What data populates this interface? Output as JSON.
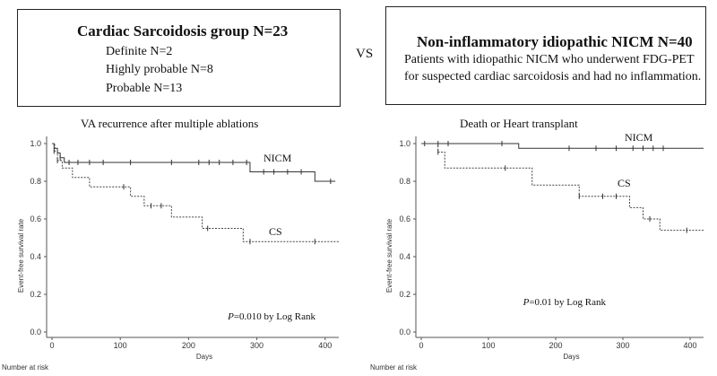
{
  "groups": {
    "cs": {
      "title": "Cardiac Sarcoidosis group N=23",
      "lines": [
        "Definite N=2",
        "Highly probable N=8",
        "Probable N=13"
      ]
    },
    "vs": "VS",
    "nicm": {
      "title": "Non-inflammatory idiopathic NICM N=40",
      "lines": [
        "Patients with idiopathic NICM who underwent FDG-PET",
        "for suspected cardiac sarcoidosis and had no inflammation."
      ]
    }
  },
  "chart_data": [
    {
      "type": "line",
      "title": "VA recurrence after multiple ablations",
      "xlabel": "Days",
      "ylabel": "Event-free survival rate",
      "xlim": [
        0,
        420
      ],
      "ylim": [
        0,
        1.0
      ],
      "xticks": [
        "0",
        "100",
        "200",
        "300",
        "400"
      ],
      "yticks": [
        "0.0",
        "0.2",
        "0.4",
        "0.6",
        "0.8",
        "1.0"
      ],
      "annotation_p": "P",
      "annotation_rest": "=0.010 by Log Rank",
      "risk_label": "Number at risk",
      "series": [
        {
          "name": "NICM",
          "style": "solid",
          "steps": [
            [
              0,
              1.0
            ],
            [
              3,
              0.975
            ],
            [
              8,
              0.95
            ],
            [
              12,
              0.925
            ],
            [
              18,
              0.9
            ],
            [
              290,
              0.9
            ],
            [
              290,
              0.85
            ],
            [
              385,
              0.85
            ],
            [
              385,
              0.8
            ],
            [
              415,
              0.8
            ]
          ],
          "censors": [
            [
              12,
              0.925
            ],
            [
              25,
              0.9
            ],
            [
              38,
              0.9
            ],
            [
              55,
              0.9
            ],
            [
              75,
              0.9
            ],
            [
              115,
              0.9
            ],
            [
              175,
              0.9
            ],
            [
              215,
              0.9
            ],
            [
              230,
              0.9
            ],
            [
              245,
              0.9
            ],
            [
              265,
              0.9
            ],
            [
              285,
              0.9
            ],
            [
              310,
              0.85
            ],
            [
              325,
              0.85
            ],
            [
              345,
              0.85
            ],
            [
              365,
              0.85
            ],
            [
              408,
              0.8
            ]
          ]
        },
        {
          "name": "CS",
          "style": "dashed",
          "steps": [
            [
              0,
              1.0
            ],
            [
              4,
              0.96
            ],
            [
              8,
              0.91
            ],
            [
              15,
              0.87
            ],
            [
              30,
              0.82
            ],
            [
              55,
              0.77
            ],
            [
              115,
              0.72
            ],
            [
              135,
              0.67
            ],
            [
              175,
              0.61
            ],
            [
              220,
              0.55
            ],
            [
              280,
              0.48
            ],
            [
              420,
              0.48
            ]
          ],
          "censors": [
            [
              3,
              0.96
            ],
            [
              8,
              0.91
            ],
            [
              105,
              0.77
            ],
            [
              145,
              0.67
            ],
            [
              160,
              0.67
            ],
            [
              228,
              0.55
            ],
            [
              290,
              0.48
            ],
            [
              385,
              0.48
            ]
          ]
        }
      ]
    },
    {
      "type": "line",
      "title": "Death or Heart transplant",
      "xlabel": "Days",
      "ylabel": "Event-free survival rate",
      "xlim": [
        0,
        420
      ],
      "ylim": [
        0,
        1.0
      ],
      "xticks": [
        "0",
        "100",
        "200",
        "300",
        "400"
      ],
      "yticks": [
        "0.0",
        "0.2",
        "0.4",
        "0.6",
        "0.8",
        "1.0"
      ],
      "annotation_p": "P",
      "annotation_rest": "=0.01 by Log Rank",
      "risk_label": "Number at risk",
      "series": [
        {
          "name": "NICM",
          "style": "solid",
          "steps": [
            [
              0,
              1.0
            ],
            [
              145,
              1.0
            ],
            [
              145,
              0.975
            ],
            [
              420,
              0.975
            ]
          ],
          "censors": [
            [
              5,
              1.0
            ],
            [
              25,
              1.0
            ],
            [
              40,
              1.0
            ],
            [
              120,
              1.0
            ],
            [
              220,
              0.975
            ],
            [
              260,
              0.975
            ],
            [
              290,
              0.975
            ],
            [
              315,
              0.975
            ],
            [
              330,
              0.975
            ],
            [
              345,
              0.975
            ],
            [
              360,
              0.975
            ]
          ]
        },
        {
          "name": "CS",
          "style": "dashed",
          "steps": [
            [
              0,
              1.0
            ],
            [
              25,
              0.955
            ],
            [
              35,
              0.87
            ],
            [
              165,
              0.87
            ],
            [
              165,
              0.78
            ],
            [
              235,
              0.78
            ],
            [
              235,
              0.72
            ],
            [
              310,
              0.72
            ],
            [
              310,
              0.66
            ],
            [
              330,
              0.66
            ],
            [
              330,
              0.6
            ],
            [
              355,
              0.6
            ],
            [
              355,
              0.54
            ],
            [
              420,
              0.54
            ]
          ],
          "censors": [
            [
              25,
              0.955
            ],
            [
              125,
              0.87
            ],
            [
              235,
              0.72
            ],
            [
              270,
              0.72
            ],
            [
              290,
              0.72
            ],
            [
              340,
              0.6
            ],
            [
              395,
              0.54
            ]
          ]
        }
      ]
    }
  ]
}
